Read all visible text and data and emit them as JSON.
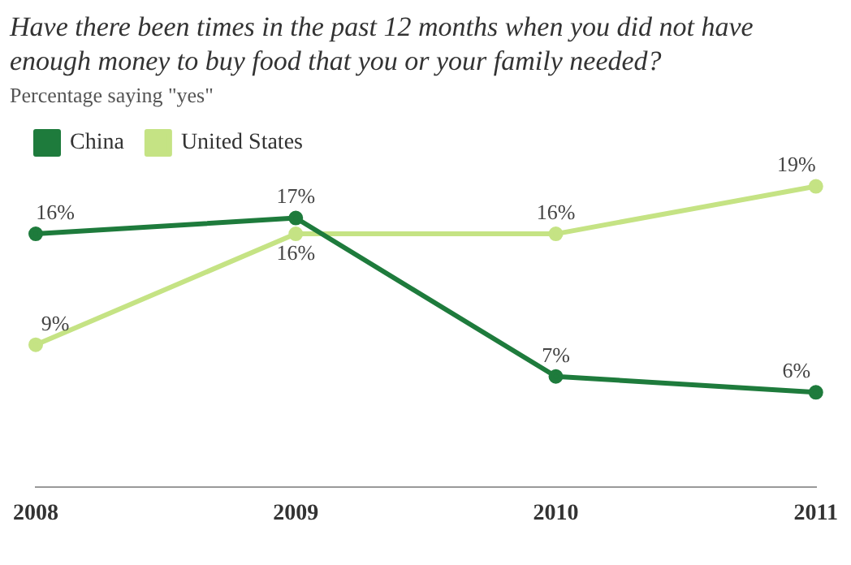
{
  "chart_data": {
    "type": "line",
    "title": "Have there been times in the past 12 months when you did not have enough money to buy food that you or your family needed?",
    "subtitle": "Percentage saying \"yes\"",
    "categories": [
      "2008",
      "2009",
      "2010",
      "2011"
    ],
    "series": [
      {
        "name": "China",
        "color": "#1e7b3c",
        "values": [
          16,
          17,
          7,
          6
        ],
        "value_labels": [
          "16%",
          "17%",
          "7%",
          "6%"
        ]
      },
      {
        "name": "United States",
        "color": "#c5e384",
        "values": [
          9,
          16,
          16,
          19
        ],
        "value_labels": [
          "9%",
          "16%",
          "16%",
          "19%"
        ]
      }
    ],
    "legend": "top left",
    "grid": false,
    "marker": "circle"
  }
}
